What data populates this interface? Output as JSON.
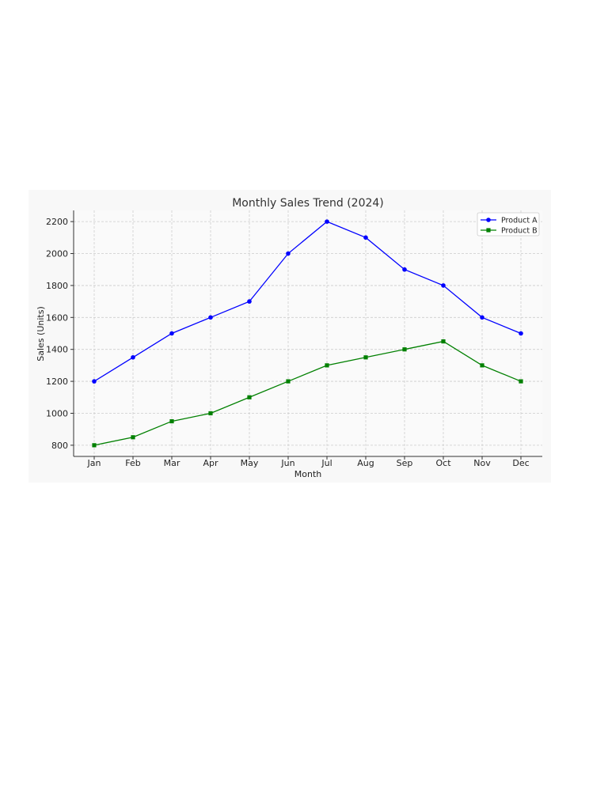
{
  "chart_data": {
    "type": "line",
    "title": "Monthly Sales Trend (2024)",
    "xlabel": "Month",
    "ylabel": "Sales (Units)",
    "categories": [
      "Jan",
      "Feb",
      "Mar",
      "Apr",
      "May",
      "Jun",
      "Jul",
      "Aug",
      "Sep",
      "Oct",
      "Nov",
      "Dec"
    ],
    "ylim": [
      730,
      2270
    ],
    "yticks": [
      800,
      1000,
      1200,
      1400,
      1600,
      1800,
      2000,
      2200
    ],
    "grid": true,
    "legend_position": "top-right",
    "series": [
      {
        "name": "Product A",
        "color": "#0000ff",
        "marker": "circle",
        "values": [
          1200,
          1350,
          1500,
          1600,
          1700,
          2000,
          2200,
          2100,
          1900,
          1800,
          1600,
          1500
        ]
      },
      {
        "name": "Product B",
        "color": "#008000",
        "marker": "square",
        "values": [
          800,
          850,
          950,
          1000,
          1100,
          1200,
          1300,
          1350,
          1400,
          1450,
          1300,
          1200
        ]
      }
    ]
  }
}
